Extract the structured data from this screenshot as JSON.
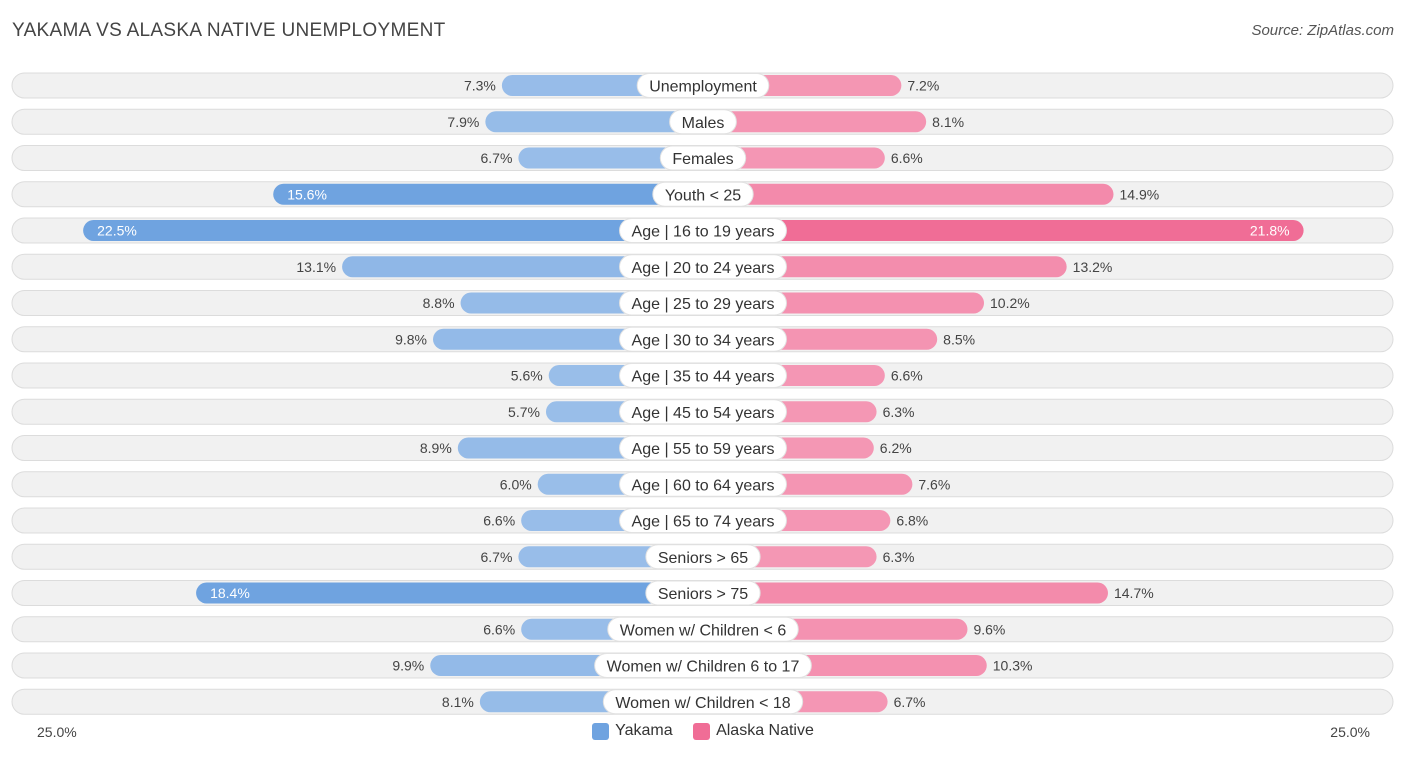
{
  "header": {
    "title": "YAKAMA VS ALASKA NATIVE UNEMPLOYMENT",
    "source": "Source: ZipAtlas.com"
  },
  "chart_data": {
    "type": "bar",
    "orientation": "horizontal-diverging",
    "title": "YAKAMA VS ALASKA NATIVE UNEMPLOYMENT",
    "categories": [
      "Unemployment",
      "Males",
      "Females",
      "Youth < 25",
      "Age | 16 to 19 years",
      "Age | 20 to 24 years",
      "Age | 25 to 29 years",
      "Age | 30 to 34 years",
      "Age | 35 to 44 years",
      "Age | 45 to 54 years",
      "Age | 55 to 59 years",
      "Age | 60 to 64 years",
      "Age | 65 to 74 years",
      "Seniors > 65",
      "Seniors > 75",
      "Women w/ Children < 6",
      "Women w/ Children 6 to 17",
      "Women w/ Children < 18"
    ],
    "series": [
      {
        "name": "Yakama",
        "color": "#6fa3e0",
        "values": [
          7.3,
          7.9,
          6.7,
          15.6,
          22.5,
          13.1,
          8.8,
          9.8,
          5.6,
          5.7,
          8.9,
          6.0,
          6.6,
          6.7,
          18.4,
          6.6,
          9.9,
          8.1
        ],
        "labels": [
          "7.3%",
          "7.9%",
          "6.7%",
          "15.6%",
          "22.5%",
          "13.1%",
          "8.8%",
          "9.8%",
          "5.6%",
          "5.7%",
          "8.9%",
          "6.0%",
          "6.6%",
          "6.7%",
          "18.4%",
          "6.6%",
          "9.9%",
          "8.1%"
        ]
      },
      {
        "name": "Alaska Native",
        "color": "#f06d96",
        "values": [
          7.2,
          8.1,
          6.6,
          14.9,
          21.8,
          13.2,
          10.2,
          8.5,
          6.6,
          6.3,
          6.2,
          7.6,
          6.8,
          6.3,
          14.7,
          9.6,
          10.3,
          6.7
        ],
        "labels": [
          "7.2%",
          "8.1%",
          "6.6%",
          "14.9%",
          "21.8%",
          "13.2%",
          "10.2%",
          "8.5%",
          "6.6%",
          "6.3%",
          "6.2%",
          "7.6%",
          "6.8%",
          "6.3%",
          "14.7%",
          "9.6%",
          "10.3%",
          "6.7%"
        ]
      }
    ],
    "xlim": [
      -25,
      25
    ],
    "axis_labels": {
      "left": "25.0%",
      "right": "25.0%"
    },
    "legend_position": "bottom-center"
  }
}
